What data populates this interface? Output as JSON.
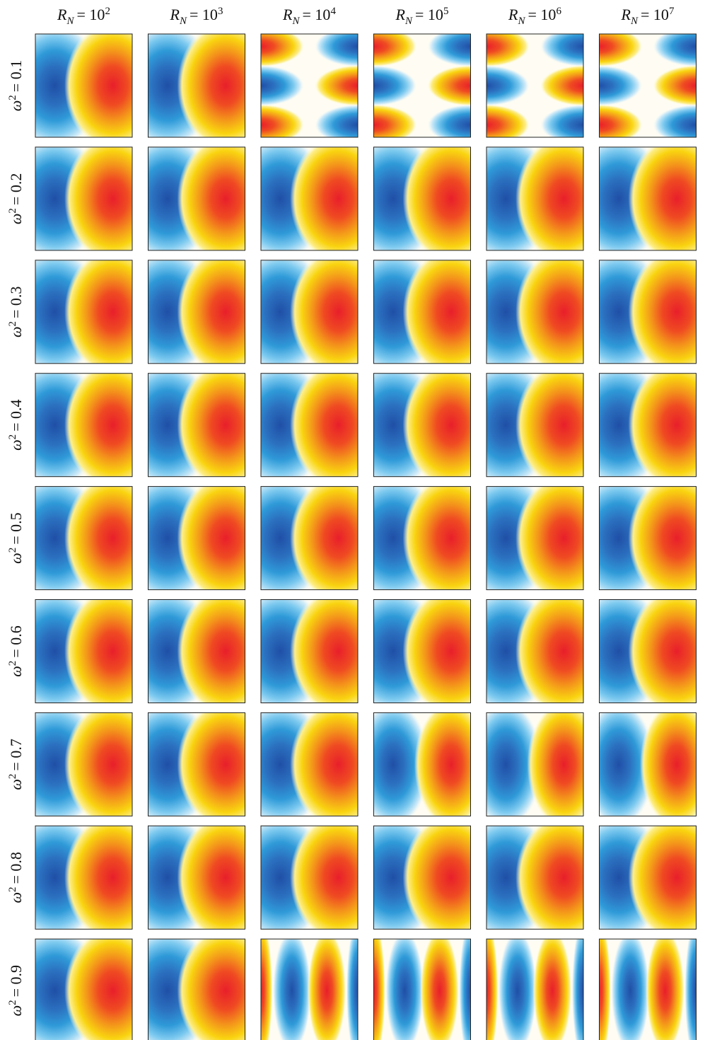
{
  "columns": [
    {
      "symbol": "R",
      "subscript": "N",
      "equals": "= 10",
      "exponent": "2"
    },
    {
      "symbol": "R",
      "subscript": "N",
      "equals": "= 10",
      "exponent": "3"
    },
    {
      "symbol": "R",
      "subscript": "N",
      "equals": "= 10",
      "exponent": "4"
    },
    {
      "symbol": "R",
      "subscript": "N",
      "equals": "= 10",
      "exponent": "5"
    },
    {
      "symbol": "R",
      "subscript": "N",
      "equals": "= 10",
      "exponent": "6"
    },
    {
      "symbol": "R",
      "subscript": "N",
      "equals": "= 10",
      "exponent": "7"
    }
  ],
  "rows": [
    {
      "symbol": "ω",
      "exponent": "2",
      "equals": "= 0.1"
    },
    {
      "symbol": "ω",
      "exponent": "2",
      "equals": "= 0.2"
    },
    {
      "symbol": "ω",
      "exponent": "2",
      "equals": "= 0.3"
    },
    {
      "symbol": "ω",
      "exponent": "2",
      "equals": "= 0.4"
    },
    {
      "symbol": "ω",
      "exponent": "2",
      "equals": "= 0.5"
    },
    {
      "symbol": "ω",
      "exponent": "2",
      "equals": "= 0.6"
    },
    {
      "symbol": "ω",
      "exponent": "2",
      "equals": "= 0.7"
    },
    {
      "symbol": "ω",
      "exponent": "2",
      "equals": "= 0.8"
    },
    {
      "symbol": "ω",
      "exponent": "2",
      "equals": "= 0.9"
    }
  ]
}
